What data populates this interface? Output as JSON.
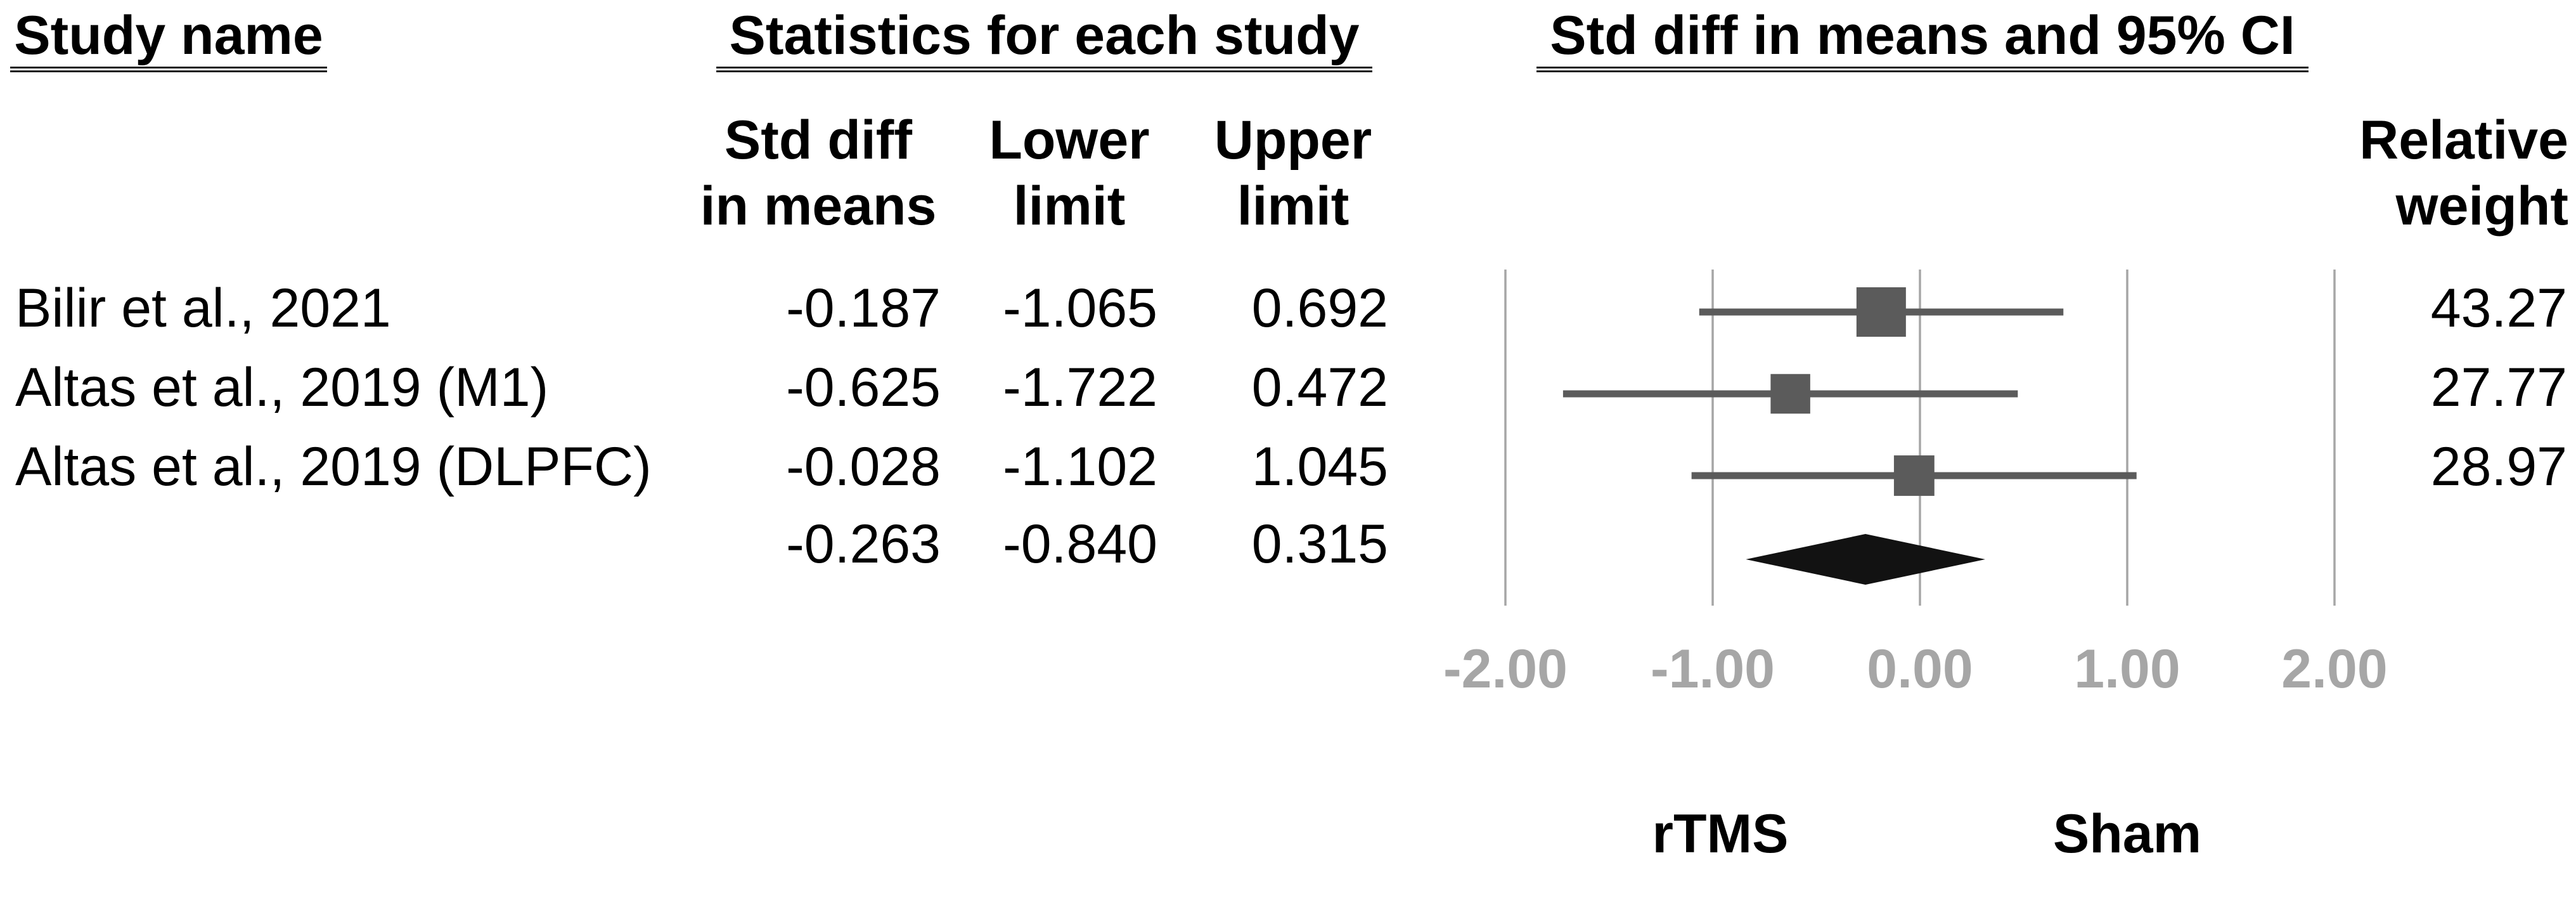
{
  "headers": {
    "study_name": "Study name",
    "statistics": "Statistics for each study",
    "plot": "Std diff in means and 95% CI"
  },
  "column_headers": {
    "std_diff": [
      "Std diff",
      "in means"
    ],
    "lower": [
      "Lower",
      "limit"
    ],
    "upper": [
      "Upper",
      "limit"
    ],
    "relative_weight": [
      "Relative",
      "weight"
    ]
  },
  "chart_data": {
    "type": "forest",
    "title": "Std diff in means and 95% CI",
    "x_axis": {
      "values": [
        -2,
        -1,
        0,
        1,
        2
      ],
      "tick_labels": [
        "-2.00",
        "-1.00",
        "0.00",
        "1.00",
        "2.00"
      ],
      "xlim": [
        -2.2,
        2.2
      ],
      "grid": true
    },
    "studies": [
      {
        "name": "Bilir et al., 2021",
        "std_diff": "-0.187",
        "lower": "-1.065",
        "upper": "0.692",
        "weight": "43.27"
      },
      {
        "name": "Altas et al., 2019 (M1)",
        "std_diff": "-0.625",
        "lower": "-1.722",
        "upper": "0.472",
        "weight": "27.77"
      },
      {
        "name": "Altas et al., 2019 (DLPFC)",
        "std_diff": "-0.028",
        "lower": "-1.102",
        "upper": "1.045",
        "weight": "28.97"
      }
    ],
    "summary": {
      "std_diff": "-0.263",
      "lower": "-0.840",
      "upper": "0.315"
    },
    "group_labels": {
      "left": "rTMS",
      "right": "Sham"
    },
    "colors": {
      "text": "#000000",
      "marker": "#5b5b5b",
      "ci_line": "#5b5b5b",
      "diamond": "#121212",
      "gridline": "#a6a6a6",
      "axis_label": "#a6a6a6"
    }
  }
}
